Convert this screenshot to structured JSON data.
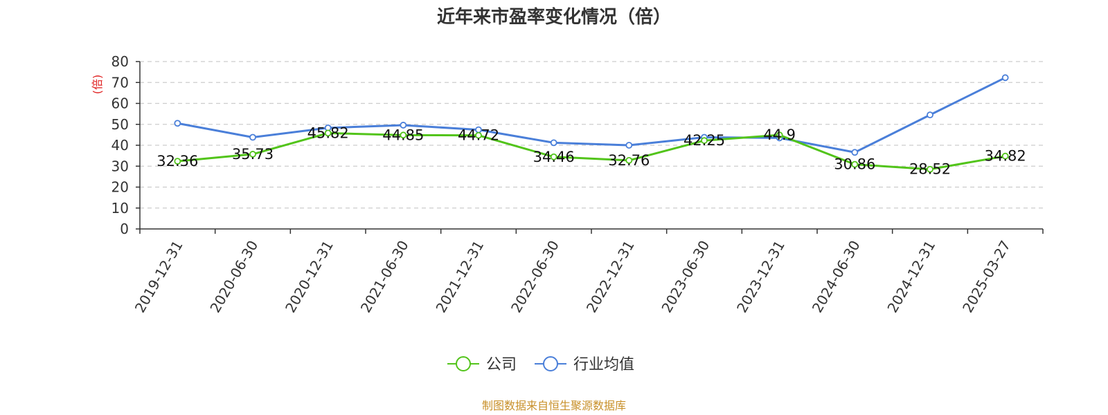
{
  "chart_data": {
    "type": "line",
    "title": "近年来市盈率变化情况（倍）",
    "ylabel": "(倍)",
    "ylim": [
      0,
      80
    ],
    "yticks": [
      0,
      10,
      20,
      30,
      40,
      50,
      60,
      70,
      80
    ],
    "categories": [
      "2019-12-31",
      "2020-06-30",
      "2020-12-31",
      "2021-06-30",
      "2021-12-31",
      "2022-06-30",
      "2022-12-31",
      "2023-06-30",
      "2023-12-31",
      "2024-06-30",
      "2024-12-31",
      "2025-03-27"
    ],
    "series": [
      {
        "name": "公司",
        "color": "#52c41a",
        "values": [
          32.36,
          35.73,
          45.82,
          44.85,
          44.72,
          34.46,
          32.76,
          42.25,
          44.9,
          30.86,
          28.52,
          34.82
        ],
        "data_labels": [
          "32.36",
          "35.73",
          "45.82",
          "44.85",
          "44.72",
          "34.46",
          "32.76",
          "42.25",
          "44.9",
          "30.86",
          "28.52",
          "34.82"
        ]
      },
      {
        "name": "行业均值",
        "color": "#4a7fd9",
        "values": [
          50.5,
          43.8,
          48.3,
          49.6,
          47.4,
          41.2,
          40.0,
          43.8,
          43.5,
          36.6,
          54.5,
          72.3
        ]
      }
    ],
    "grid": "horizontal dashed",
    "legend_position": "bottom-center"
  },
  "colors": {
    "axis": "#333333",
    "grid": "#cccccc",
    "unit": "#e02020",
    "source": "#c8902a"
  },
  "source_text": "制图数据来自恒生聚源数据库"
}
